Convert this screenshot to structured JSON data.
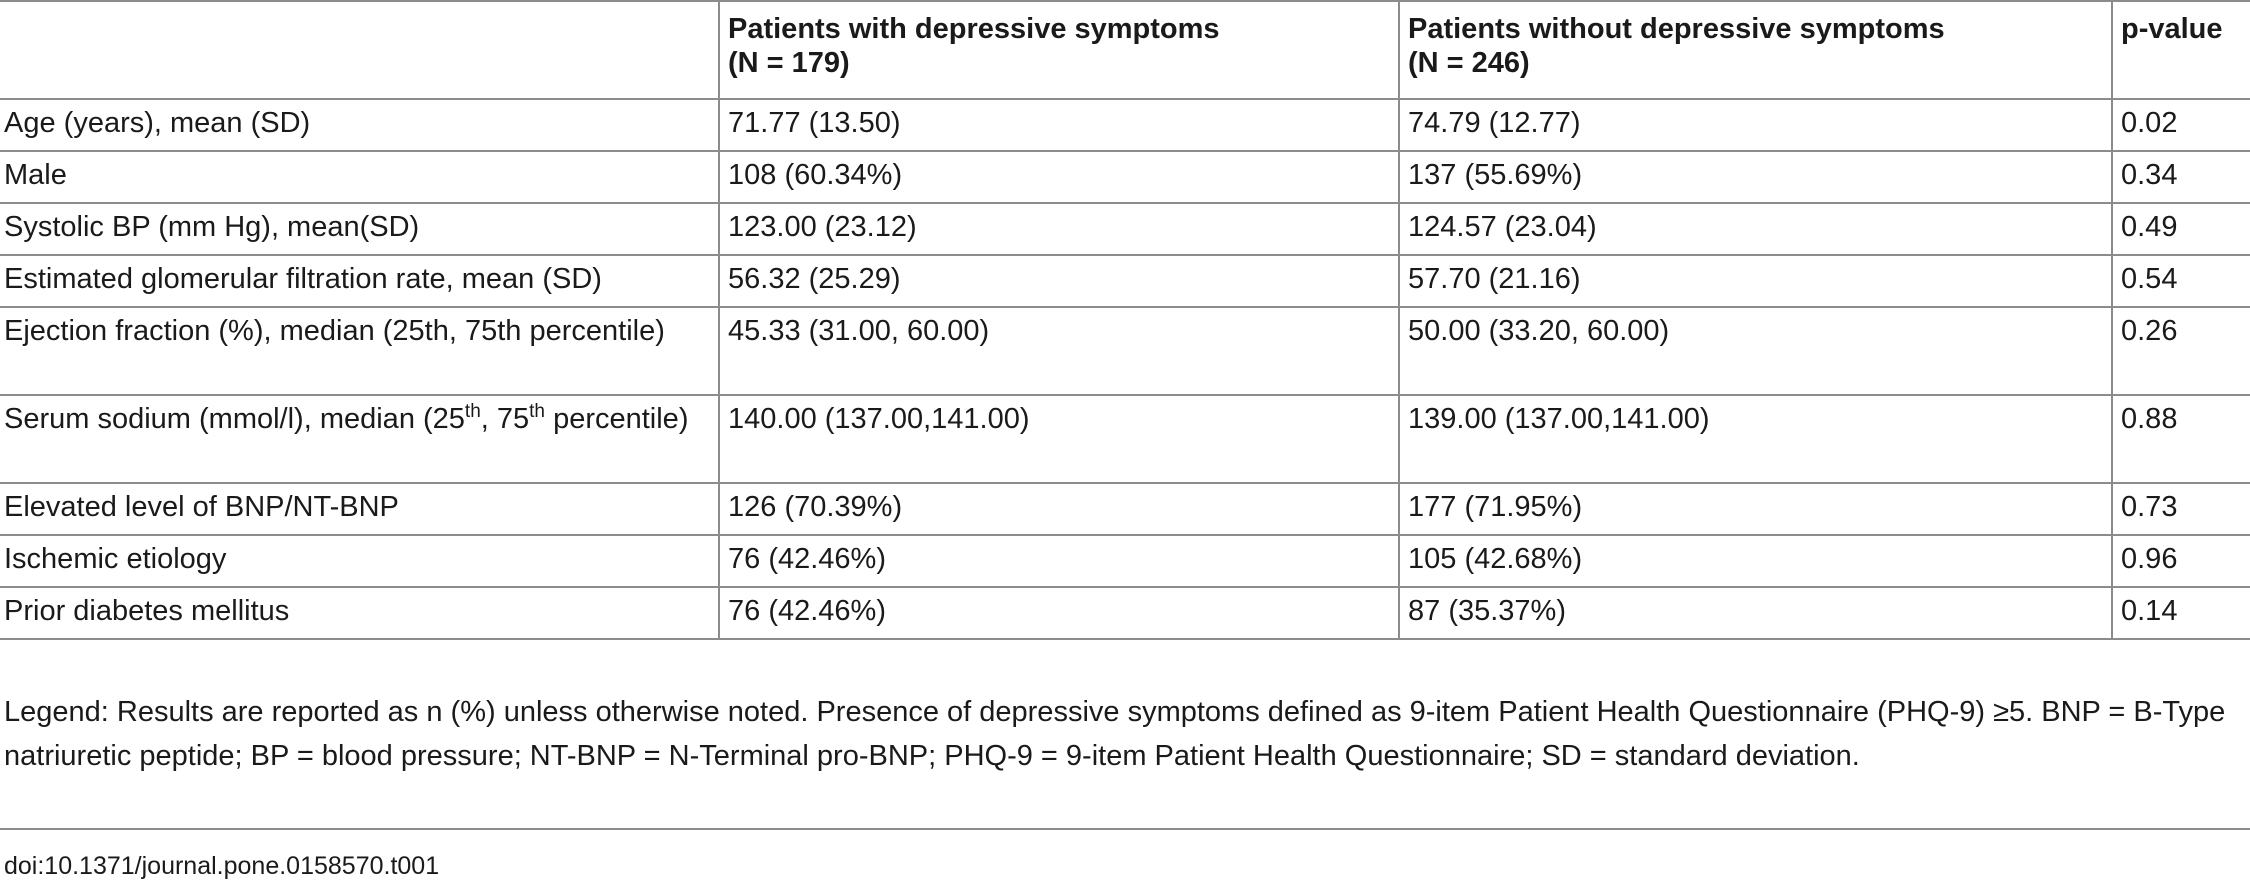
{
  "table": {
    "header": {
      "col_1": "",
      "col_2_line1": "Patients with depressive symptoms",
      "col_2_line2": "(N = 179)",
      "col_3_line1": "Patients without depressive symptoms",
      "col_3_line2": "(N = 246)",
      "col_4": "p-value"
    },
    "rows": [
      {
        "characteristic": "Age (years), mean (SD)",
        "with_depressive": "71.77 (13.50)",
        "without_depressive": "74.79 (12.77)",
        "p_value": "0.02",
        "p_value_bold": true
      },
      {
        "characteristic": "Male",
        "with_depressive": "108 (60.34%)",
        "without_depressive": "137 (55.69%)",
        "p_value": "0.34"
      },
      {
        "characteristic": "Systolic BP (mm Hg), mean(SD)",
        "with_depressive": "123.00 (23.12)",
        "without_depressive": "124.57 (23.04)",
        "p_value": "0.49"
      },
      {
        "characteristic": "Estimated glomerular filtration rate, mean (SD)",
        "with_depressive": "56.32 (25.29)",
        "without_depressive": "57.70 (21.16)",
        "p_value": "0.54"
      },
      {
        "characteristic": "Ejection fraction (%), median (25th, 75th percentile)",
        "with_depressive": "45.33 (31.00, 60.00)",
        "without_depressive": "50.00 (33.20, 60.00)",
        "p_value": "0.26"
      },
      {
        "characteristic_parts": [
          "Serum sodium (mmol/l), median (25",
          "th",
          ", 75",
          "th",
          " percentile)"
        ],
        "with_depressive": "140.00 (137.00,141.00)",
        "without_depressive": "139.00 (137.00,141.00)",
        "p_value": "0.88"
      },
      {
        "characteristic": "Elevated level of BNP/NT-BNP",
        "with_depressive": "126 (70.39%)",
        "without_depressive": "177 (71.95%)",
        "p_value": "0.73"
      },
      {
        "characteristic": "Ischemic etiology",
        "with_depressive": "76 (42.46%)",
        "without_depressive": "105 (42.68%)",
        "p_value": "0.96"
      },
      {
        "characteristic": "Prior diabetes mellitus",
        "with_depressive": "76 (42.46%)",
        "without_depressive": "87 (35.37%)",
        "p_value": "0.14"
      }
    ]
  },
  "legend": "Legend: Results are reported as n (%) unless otherwise noted. Presence of depressive symptoms defined as 9-item Patient Health Questionnaire (PHQ-9) ≥5. BNP = B-Type natriuretic peptide; BP = blood pressure; NT-BNP = N-Terminal pro-BNP; PHQ-9 = 9-item Patient Health Questionnaire; SD = standard deviation.",
  "doi": "doi:10.1371/journal.pone.0158570.t001"
}
